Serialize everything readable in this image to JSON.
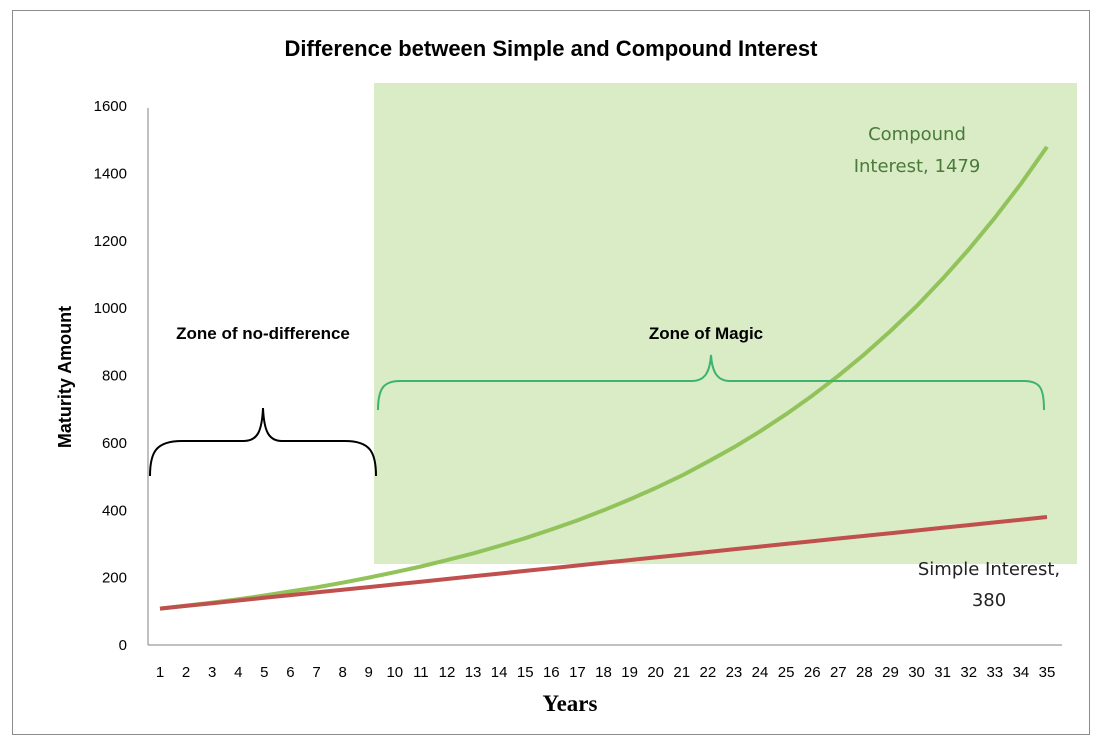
{
  "chart_data": {
    "type": "line",
    "title": "Difference between Simple and Compound Interest",
    "xlabel": "Years",
    "ylabel": "Maturity Amount",
    "ylim": [
      0,
      1600
    ],
    "yticks": [
      0,
      200,
      400,
      600,
      800,
      1000,
      1200,
      1400,
      1600
    ],
    "x": [
      1,
      2,
      3,
      4,
      5,
      6,
      7,
      8,
      9,
      10,
      11,
      12,
      13,
      14,
      15,
      16,
      17,
      18,
      19,
      20,
      21,
      22,
      23,
      24,
      25,
      26,
      27,
      28,
      29,
      30,
      31,
      32,
      33,
      34,
      35
    ],
    "grid": false,
    "legend": "none",
    "series": [
      {
        "name": "Compound Interest",
        "color": "#92c35a",
        "values": [
          108,
          117,
          126,
          136,
          147,
          159,
          171,
          185,
          200,
          216,
          233,
          252,
          272,
          294,
          317,
          343,
          370,
          400,
          432,
          466,
          503,
          544,
          587,
          634,
          685,
          740,
          799,
          863,
          932,
          1006,
          1087,
          1174,
          1268,
          1369,
          1479
        ]
      },
      {
        "name": "Simple Interest",
        "color": "#c0504d",
        "values": [
          108,
          116,
          124,
          132,
          140,
          148,
          156,
          164,
          172,
          180,
          188,
          196,
          204,
          212,
          220,
          228,
          236,
          244,
          252,
          260,
          268,
          276,
          284,
          292,
          300,
          308,
          316,
          324,
          332,
          340,
          348,
          356,
          364,
          372,
          380
        ]
      }
    ],
    "annotations": {
      "compound_line1": "Compound",
      "compound_line2": "Interest, 1479",
      "simple_line1": "Simple Interest,",
      "simple_line2": "380",
      "zone_no_diff": "Zone of no-difference",
      "zone_magic": "Zone of Magic"
    },
    "colors": {
      "magic_zone_fill": "#d9ecc6",
      "magic_brace": "#3cb371",
      "nodiff_brace": "#000000",
      "axis": "#808080",
      "compound_label": "#4a7a3a",
      "simple_label": "#222222"
    }
  }
}
